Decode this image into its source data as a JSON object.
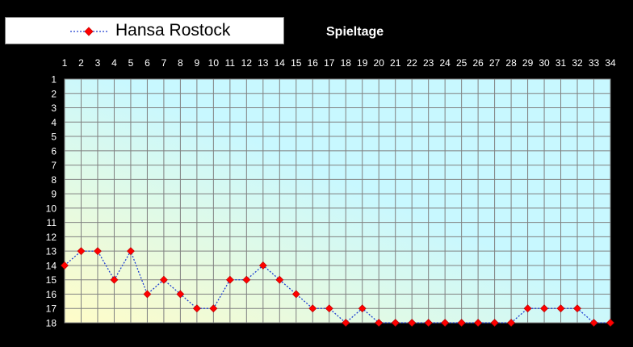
{
  "legend": {
    "series_name": "Hansa Rostock"
  },
  "chart_data": {
    "type": "line",
    "title": "",
    "xlabel": "Spieltage",
    "ylabel": "",
    "x": [
      1,
      2,
      3,
      4,
      5,
      6,
      7,
      8,
      9,
      10,
      11,
      12,
      13,
      14,
      15,
      16,
      17,
      18,
      19,
      20,
      21,
      22,
      23,
      24,
      25,
      26,
      27,
      28,
      29,
      30,
      31,
      32,
      33,
      34
    ],
    "x_tick_labels": [
      "1",
      "2",
      "3",
      "4",
      "5",
      "6",
      "7",
      "8",
      "9",
      "10",
      "11",
      "12",
      "13",
      "14",
      "15",
      "16",
      "17",
      "18",
      "19",
      "20",
      "21",
      "22",
      "23",
      "24",
      "25",
      "26",
      "27",
      "28",
      "29",
      "30",
      "31",
      "32",
      "33",
      "34"
    ],
    "y_tick_labels": [
      "1",
      "2",
      "3",
      "4",
      "5",
      "6",
      "7",
      "8",
      "9",
      "10",
      "11",
      "12",
      "13",
      "14",
      "15",
      "16",
      "17",
      "18"
    ],
    "xlim": [
      1,
      34
    ],
    "ylim": [
      18,
      1
    ],
    "y_axis_inverted": true,
    "x_axis_position": "top",
    "grid": true,
    "legend_position": "top-left",
    "series": [
      {
        "name": "Hansa Rostock",
        "line_color": "#1f3fd0",
        "line_style": "dotted",
        "marker": "diamond",
        "marker_color": "#ff0000",
        "values": [
          14,
          13,
          13,
          15,
          13,
          16,
          15,
          16,
          17,
          17,
          15,
          15,
          14,
          15,
          16,
          17,
          17,
          18,
          17,
          18,
          18,
          18,
          18,
          18,
          18,
          18,
          18,
          18,
          17,
          17,
          17,
          17,
          18,
          18
        ]
      }
    ],
    "colors": {
      "page_background": "#000000",
      "grid": "#808080",
      "axis_text": "#ffffff",
      "plot_gradient": [
        "#fffcc8",
        "#c8f8ff"
      ]
    }
  }
}
